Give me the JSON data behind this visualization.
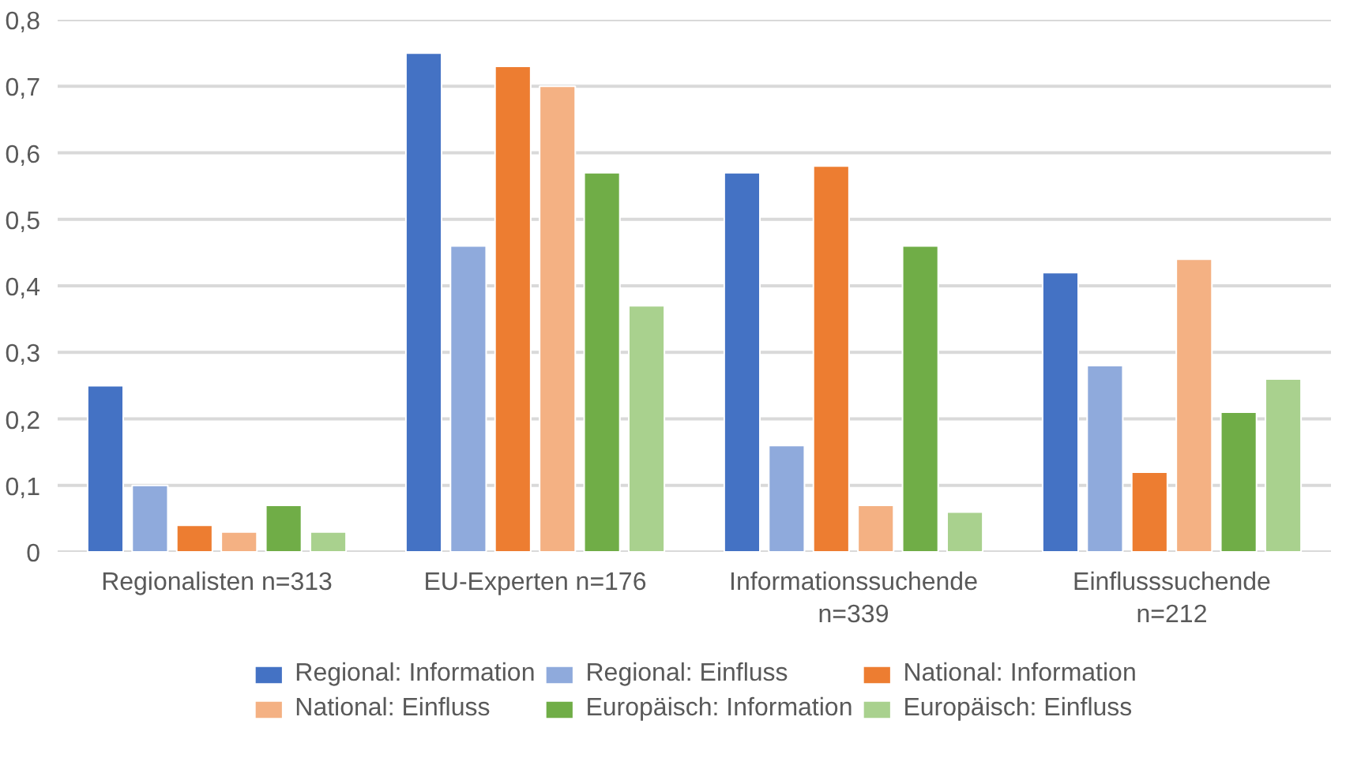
{
  "chart_data": {
    "type": "bar",
    "categories": [
      "Regionalisten n=313",
      "EU-Experten n=176",
      "Informationssuchende\nn=339",
      "Einflusssuchende\nn=212"
    ],
    "ylim": [
      0,
      0.8
    ],
    "yticks": [
      {
        "value": 0,
        "label": "0"
      },
      {
        "value": 0.1,
        "label": "0,1"
      },
      {
        "value": 0.2,
        "label": "0,2"
      },
      {
        "value": 0.3,
        "label": "0,3"
      },
      {
        "value": 0.4,
        "label": "0,4"
      },
      {
        "value": 0.5,
        "label": "0,5"
      },
      {
        "value": 0.6,
        "label": "0,6"
      },
      {
        "value": 0.7,
        "label": "0,7"
      },
      {
        "value": 0.8,
        "label": "0,8"
      }
    ],
    "grid": "y",
    "legend": "bottom",
    "series": [
      {
        "name": "Regional: Information",
        "color": "#4472c4",
        "values": [
          0.25,
          0.75,
          0.57,
          0.42
        ]
      },
      {
        "name": "Regional: Einfluss",
        "color": "#8faadc",
        "values": [
          0.1,
          0.46,
          0.16,
          0.28
        ]
      },
      {
        "name": "National: Information",
        "color": "#ed7d31",
        "values": [
          0.04,
          0.73,
          0.58,
          0.12
        ]
      },
      {
        "name": "National: Einfluss",
        "color": "#f4b183",
        "values": [
          0.03,
          0.7,
          0.07,
          0.44
        ]
      },
      {
        "name": "Europäisch: Information",
        "color": "#70ad47",
        "values": [
          0.07,
          0.57,
          0.46,
          0.21
        ]
      },
      {
        "name": "Europäisch: Einfluss",
        "color": "#a9d18e",
        "values": [
          0.03,
          0.37,
          0.06,
          0.26
        ]
      }
    ]
  }
}
